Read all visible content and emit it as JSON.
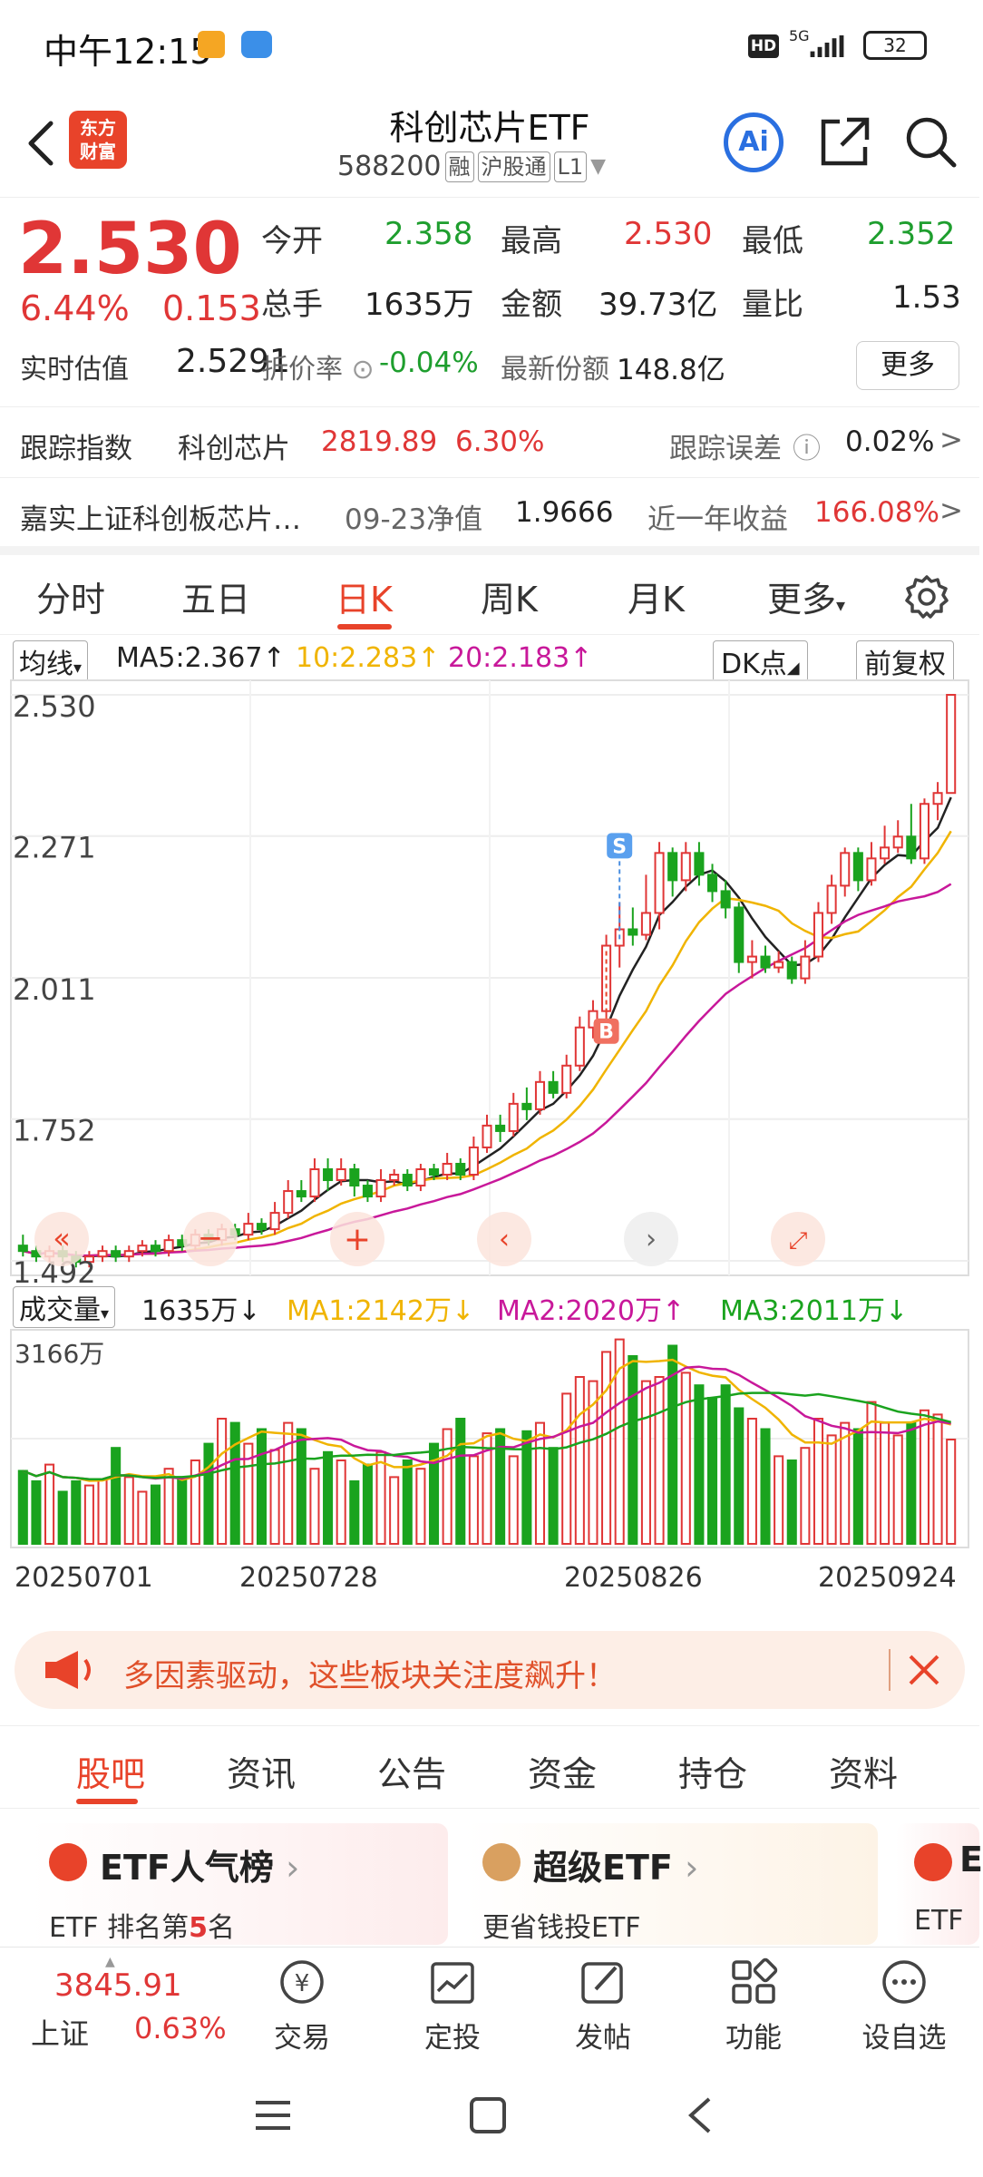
{
  "status_bar": {
    "time": "中午12:15",
    "hd": "HD",
    "network": "5G",
    "battery": "32"
  },
  "header": {
    "logo_line1": "东方",
    "logo_line2": "财富",
    "title": "科创芯片ETF",
    "code": "588200",
    "tags": [
      "融",
      "沪股通",
      "L1"
    ],
    "ai_label": "Ai"
  },
  "quote": {
    "price": "2.530",
    "change_pct": "6.44%",
    "change_amt": "0.153",
    "open_label": "今开",
    "open": "2.358",
    "high_label": "最高",
    "high": "2.530",
    "low_label": "最低",
    "low": "2.352",
    "volume_label": "总手",
    "volume": "1635万",
    "amount_label": "金额",
    "amount": "39.73亿",
    "ratio_label": "量比",
    "ratio": "1.53",
    "est_label": "实时估值",
    "est": "2.5291",
    "premium_label": "折价率",
    "premium": "-0.04%",
    "shares_label": "最新份额",
    "shares": "148.8亿",
    "more_label": "更多"
  },
  "tracking": {
    "label": "跟踪指数",
    "index_name": "科创芯片",
    "index_value": "2819.89",
    "index_change": "6.30%",
    "error_label": "跟踪误差",
    "error_value": "0.02%"
  },
  "fund": {
    "name": "嘉实上证科创板芯片…",
    "nav_label": "09-23净值",
    "nav": "1.9666",
    "return_label": "近一年收益",
    "return": "166.08%"
  },
  "kline_tabs": [
    "分时",
    "五日",
    "日K",
    "周K",
    "月K",
    "更多"
  ],
  "kline_active": "日K",
  "ma_bar": {
    "selector": "均线",
    "ma5": "MA5:2.367",
    "ma10": "10:2.283",
    "ma20": "20:2.183",
    "dk_label": "DK点",
    "adjust_label": "前复权"
  },
  "vol_bar": {
    "selector": "成交量",
    "vol": "1635万",
    "ma1": "MA1:2142万",
    "ma2": "MA2:2020万",
    "ma3": "MA3:2011万"
  },
  "chart_data": {
    "type": "candlestick",
    "y_ticks": [
      "2.530",
      "2.271",
      "2.011",
      "1.752",
      "1.492"
    ],
    "ylim": [
      1.492,
      2.53
    ],
    "vol_max_label": "3166万",
    "x_ticks": [
      "20250701",
      "20250728",
      "20250826",
      "20250924"
    ],
    "markers": {
      "buy": "B",
      "sell": "S"
    },
    "colors": {
      "up": "#e03636",
      "down": "#1aa31e",
      "ma5": "#222222",
      "ma10": "#f0b400",
      "ma20": "#c8189a"
    },
    "candles": [
      [
        1.52,
        1.51,
        1.54,
        1.5
      ],
      [
        1.51,
        1.5,
        1.52,
        1.49
      ],
      [
        1.5,
        1.51,
        1.52,
        1.49
      ],
      [
        1.51,
        1.5,
        1.52,
        1.49
      ],
      [
        1.5,
        1.49,
        1.51,
        1.48
      ],
      [
        1.49,
        1.5,
        1.51,
        1.48
      ],
      [
        1.5,
        1.51,
        1.52,
        1.49
      ],
      [
        1.51,
        1.5,
        1.52,
        1.49
      ],
      [
        1.5,
        1.51,
        1.52,
        1.49
      ],
      [
        1.51,
        1.52,
        1.53,
        1.5
      ],
      [
        1.52,
        1.51,
        1.53,
        1.5
      ],
      [
        1.51,
        1.53,
        1.54,
        1.5
      ],
      [
        1.53,
        1.52,
        1.54,
        1.51
      ],
      [
        1.52,
        1.54,
        1.55,
        1.51
      ],
      [
        1.54,
        1.53,
        1.55,
        1.52
      ],
      [
        1.53,
        1.55,
        1.56,
        1.52
      ],
      [
        1.55,
        1.54,
        1.56,
        1.53
      ],
      [
        1.54,
        1.56,
        1.58,
        1.53
      ],
      [
        1.56,
        1.55,
        1.57,
        1.54
      ],
      [
        1.55,
        1.58,
        1.6,
        1.54
      ],
      [
        1.58,
        1.62,
        1.64,
        1.57
      ],
      [
        1.62,
        1.61,
        1.64,
        1.6
      ],
      [
        1.61,
        1.66,
        1.68,
        1.6
      ],
      [
        1.66,
        1.64,
        1.68,
        1.62
      ],
      [
        1.64,
        1.66,
        1.68,
        1.63
      ],
      [
        1.66,
        1.63,
        1.67,
        1.61
      ],
      [
        1.63,
        1.61,
        1.64,
        1.6
      ],
      [
        1.61,
        1.64,
        1.66,
        1.6
      ],
      [
        1.64,
        1.65,
        1.66,
        1.63
      ],
      [
        1.65,
        1.63,
        1.66,
        1.62
      ],
      [
        1.63,
        1.66,
        1.67,
        1.62
      ],
      [
        1.66,
        1.65,
        1.67,
        1.64
      ],
      [
        1.65,
        1.67,
        1.69,
        1.64
      ],
      [
        1.67,
        1.65,
        1.68,
        1.64
      ],
      [
        1.65,
        1.7,
        1.72,
        1.64
      ],
      [
        1.7,
        1.74,
        1.76,
        1.69
      ],
      [
        1.74,
        1.73,
        1.76,
        1.71
      ],
      [
        1.73,
        1.78,
        1.8,
        1.72
      ],
      [
        1.78,
        1.77,
        1.81,
        1.75
      ],
      [
        1.77,
        1.82,
        1.84,
        1.76
      ],
      [
        1.82,
        1.8,
        1.84,
        1.79
      ],
      [
        1.8,
        1.85,
        1.87,
        1.79
      ],
      [
        1.85,
        1.92,
        1.94,
        1.84
      ],
      [
        1.92,
        1.95,
        1.97,
        1.9
      ],
      [
        1.95,
        2.07,
        2.09,
        1.94
      ],
      [
        2.07,
        2.1,
        2.15,
        2.03
      ],
      [
        2.1,
        2.09,
        2.14,
        2.07
      ],
      [
        2.09,
        2.13,
        2.2,
        2.08
      ],
      [
        2.13,
        2.24,
        2.26,
        2.1
      ],
      [
        2.24,
        2.19,
        2.25,
        2.16
      ],
      [
        2.19,
        2.24,
        2.26,
        2.17
      ],
      [
        2.24,
        2.2,
        2.26,
        2.18
      ],
      [
        2.2,
        2.17,
        2.22,
        2.15
      ],
      [
        2.17,
        2.14,
        2.19,
        2.12
      ],
      [
        2.14,
        2.04,
        2.15,
        2.02
      ],
      [
        2.04,
        2.05,
        2.08,
        2.01
      ],
      [
        2.05,
        2.03,
        2.07,
        2.02
      ],
      [
        2.03,
        2.04,
        2.06,
        2.02
      ],
      [
        2.04,
        2.01,
        2.05,
        2.0
      ],
      [
        2.01,
        2.05,
        2.08,
        2.0
      ],
      [
        2.05,
        2.13,
        2.15,
        2.04
      ],
      [
        2.13,
        2.18,
        2.2,
        2.11
      ],
      [
        2.18,
        2.24,
        2.25,
        2.16
      ],
      [
        2.24,
        2.19,
        2.25,
        2.17
      ],
      [
        2.19,
        2.23,
        2.26,
        2.18
      ],
      [
        2.23,
        2.25,
        2.29,
        2.22
      ],
      [
        2.25,
        2.27,
        2.3,
        2.24
      ],
      [
        2.27,
        2.23,
        2.33,
        2.22
      ],
      [
        2.23,
        2.33,
        2.34,
        2.22
      ],
      [
        2.33,
        2.35,
        2.37,
        2.3
      ],
      [
        2.35,
        2.53,
        2.53,
        2.35
      ]
    ],
    "volumes": [
      35,
      30,
      38,
      25,
      30,
      28,
      31,
      46,
      32,
      25,
      28,
      36,
      32,
      40,
      48,
      60,
      58,
      48,
      55,
      45,
      58,
      55,
      36,
      44,
      40,
      30,
      38,
      44,
      32,
      40,
      36,
      48,
      55,
      60,
      42,
      53,
      55,
      42,
      54,
      58,
      46,
      72,
      80,
      78,
      92,
      98,
      90,
      78,
      80,
      95,
      82,
      76,
      70,
      76,
      65,
      60,
      55,
      42,
      40,
      46,
      60,
      52,
      58,
      55,
      68,
      58,
      52,
      58,
      64,
      62,
      50
    ]
  },
  "banner": {
    "text": "多因素驱动，这些板块关注度飙升！"
  },
  "info_tabs": [
    "股吧",
    "资讯",
    "公告",
    "资金",
    "持仓",
    "资料"
  ],
  "cards": [
    {
      "title": "ETF人气榜",
      "sub_prefix": "ETF 排名第",
      "sub_num": "5",
      "sub_suffix": "名"
    },
    {
      "title": "超级ETF",
      "sub": "更省钱投ETF"
    },
    {
      "title": "E",
      "sub": "ETF"
    }
  ],
  "bottom_nav": {
    "index_value": "3845.91",
    "index_name": "上证",
    "index_change": "0.63%",
    "items": [
      "交易",
      "定投",
      "发帖",
      "功能",
      "设自选"
    ]
  }
}
